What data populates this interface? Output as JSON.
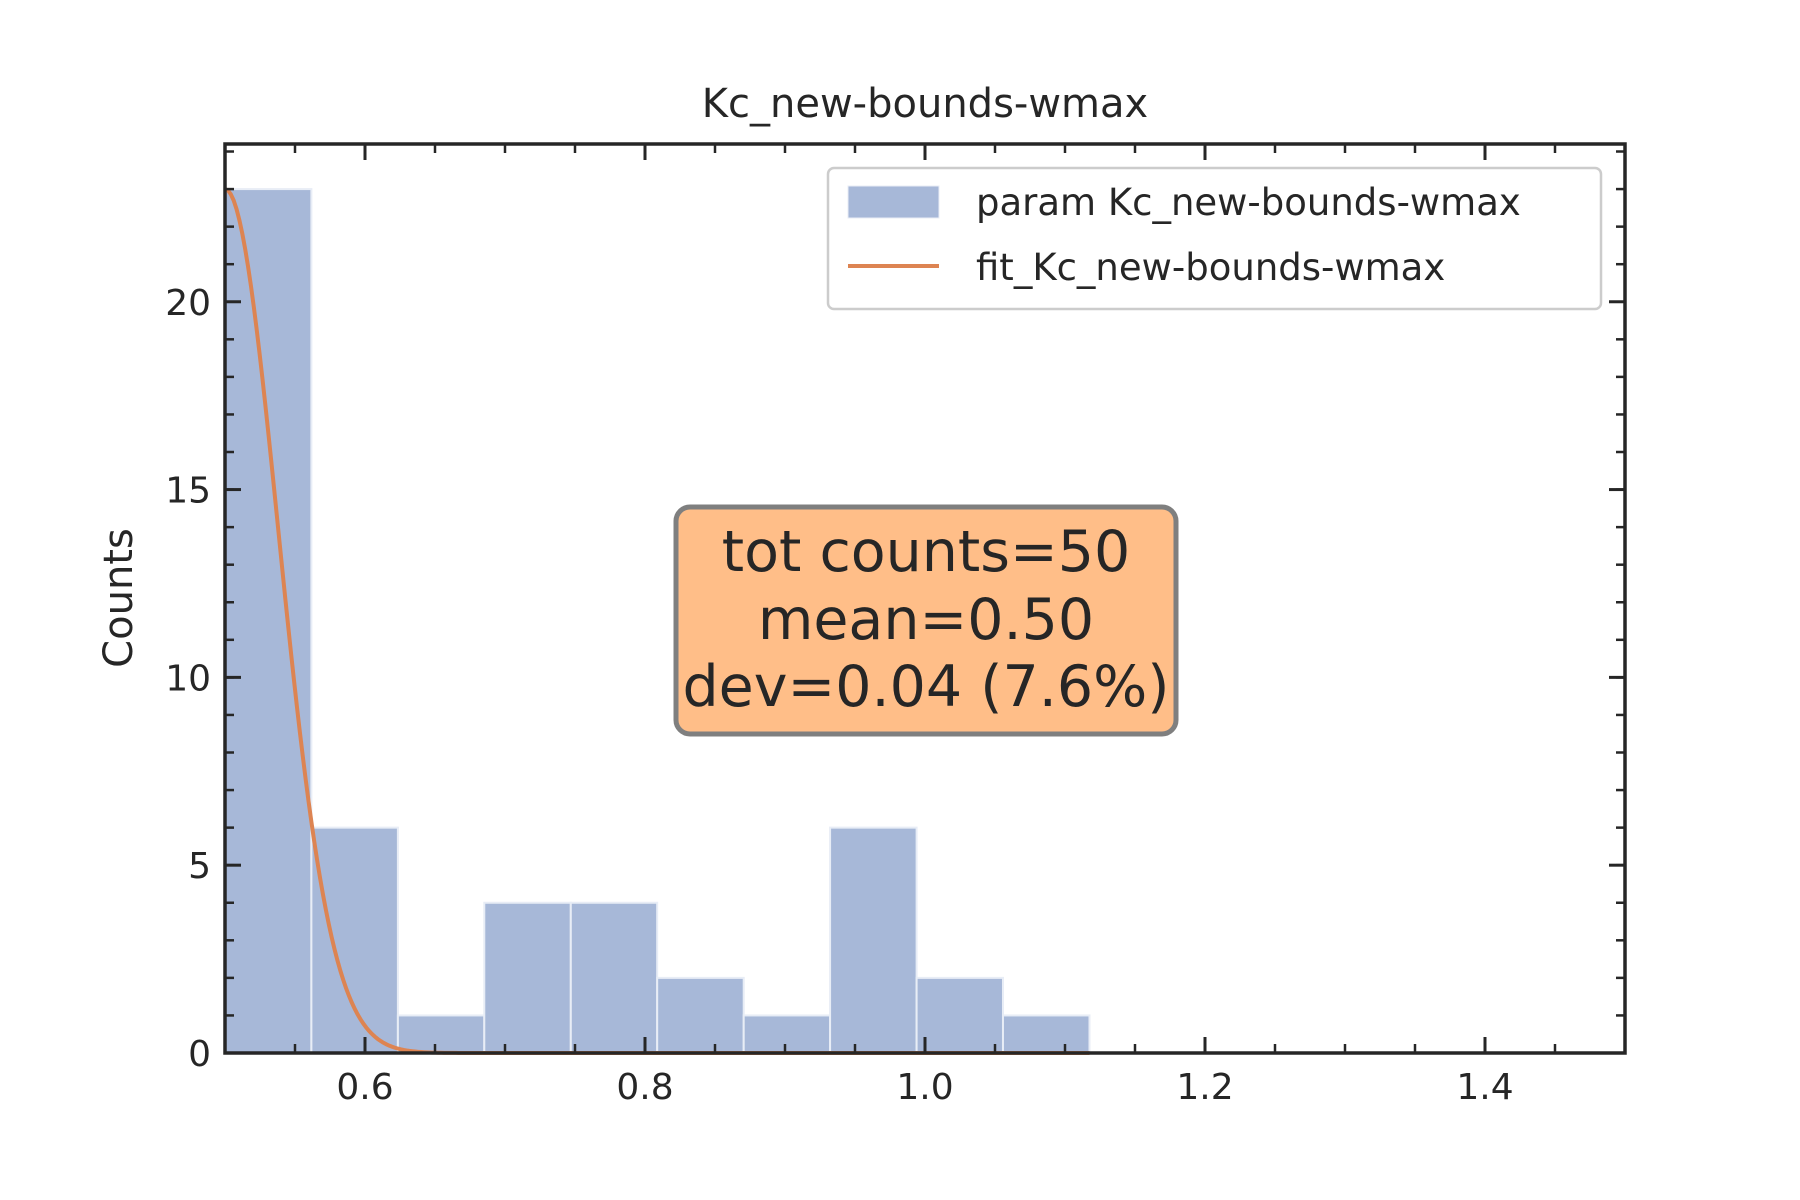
{
  "chart_data": {
    "type": "bar",
    "title": "Kc_new-bounds-wmax",
    "xlabel": "",
    "ylabel": "Counts",
    "xlim": [
      0.5,
      1.5
    ],
    "ylim": [
      0,
      24.2
    ],
    "xticks": [
      0.6,
      0.8,
      1.0,
      1.2,
      1.4
    ],
    "xtick_labels": [
      "0.6",
      "0.8",
      "1.0",
      "1.2",
      "1.4"
    ],
    "yticks": [
      0,
      5,
      10,
      15,
      20
    ],
    "ytick_labels": [
      "0",
      "5",
      "10",
      "15",
      "20"
    ],
    "x_minor_step": 0.05,
    "y_minor_step": 1,
    "bins": {
      "edges": [
        0.5,
        0.5617,
        0.6235,
        0.6852,
        0.747,
        0.8087,
        0.8705,
        0.9322,
        0.994,
        1.0557,
        1.1175
      ],
      "counts": [
        23,
        6,
        1,
        4,
        4,
        2,
        1,
        6,
        2,
        1
      ]
    },
    "fit": {
      "type": "gaussian",
      "mean": 0.5,
      "sigma": 0.038,
      "amplitude": 23,
      "x_range": [
        0.5,
        1.1175
      ]
    },
    "legend": {
      "position": "top-right",
      "entries": [
        "param Kc_new-bounds-wmax",
        "fit_Kc_new-bounds-wmax"
      ]
    },
    "annotation": {
      "lines": [
        "tot counts=50",
        "mean=0.50",
        "dev=0.04 (7.6%)"
      ]
    },
    "colors": {
      "bar": "#a7b8d8",
      "bar_edge": "#e8edf6",
      "fit": "#dd8452",
      "stats_box": "#ffbe88",
      "stats_box_edge": "#7f7f7f",
      "axis": "#262626"
    }
  }
}
